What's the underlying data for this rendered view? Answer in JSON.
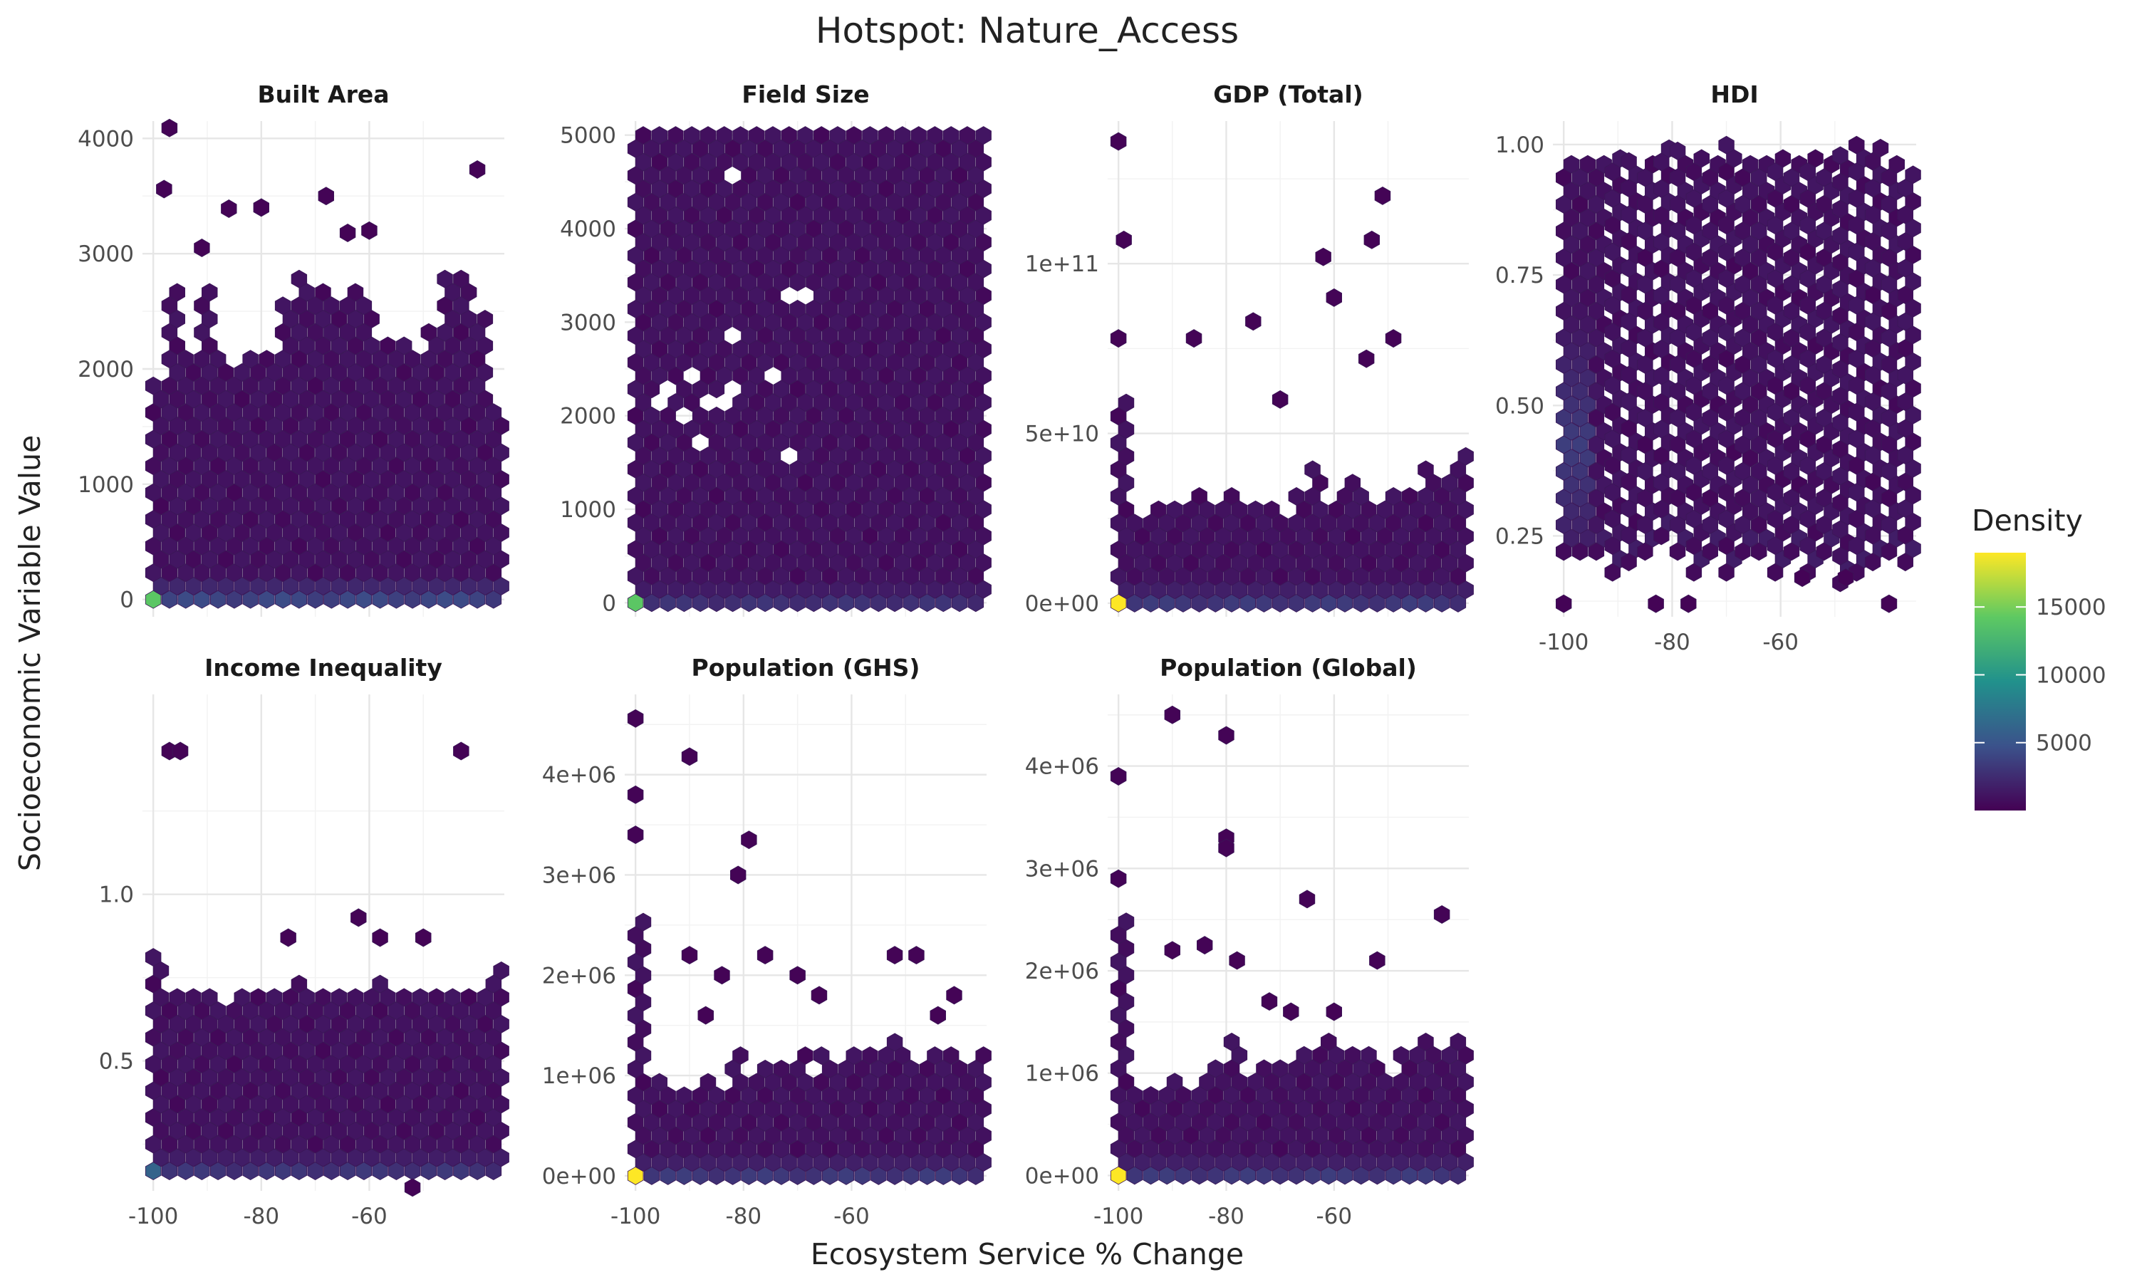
{
  "chart_data": {
    "type": "heatmap",
    "subtype": "hexbin-facets",
    "title": "Hotspot: Nature_Access",
    "xlabel": "Ecosystem Service % Change",
    "ylabel": "Socioeconomic Variable Value",
    "xlim": [
      -102,
      -35
    ],
    "x_ticks": [
      -100,
      -80,
      -60
    ],
    "x_tick_labels": [
      "-100",
      "-80",
      "-60"
    ],
    "grid": true,
    "colormap": "viridis",
    "colors": [
      "#440154",
      "#3b528b",
      "#21918c",
      "#5ec962",
      "#fde725"
    ],
    "legend": {
      "title": "Density",
      "placement": "right",
      "range": [
        0,
        19000
      ],
      "ticks": [
        5000,
        10000,
        15000
      ],
      "tick_labels": [
        "5000",
        "10000",
        "15000"
      ]
    },
    "panels": [
      {
        "title": "Built Area",
        "ylim": [
          -150,
          4150
        ],
        "y_ticks": [
          0,
          1000,
          2000,
          3000,
          4000
        ],
        "y_tick_labels": [
          "0",
          "1000",
          "2000",
          "3000",
          "4000"
        ],
        "hot_density": 14000,
        "mid_density": 4000,
        "profile": [
          1950,
          2700,
          2100,
          2700,
          2200,
          2000,
          2200,
          2200,
          2600,
          2800,
          2700,
          2600,
          2700,
          2600,
          2300,
          2300,
          2200,
          2400,
          2800,
          2800,
          2500,
          1700
        ],
        "outliers": [
          [
            -97,
            4090
          ],
          [
            -60,
            3200
          ],
          [
            -40,
            3730
          ],
          [
            -86,
            3390
          ],
          [
            -80,
            3400
          ],
          [
            -68,
            3500
          ],
          [
            -64,
            3180
          ],
          [
            -91,
            3050
          ],
          [
            -98,
            3560
          ]
        ],
        "holes": []
      },
      {
        "title": "Field Size",
        "ylim": [
          -150,
          5150
        ],
        "y_ticks": [
          0,
          1000,
          2000,
          3000,
          4000,
          5000
        ],
        "y_tick_labels": [
          "0",
          "1000",
          "2000",
          "3000",
          "4000",
          "5000"
        ],
        "hot_density": 14000,
        "mid_density": 2800,
        "profile": [
          5000,
          5000,
          5000,
          5000,
          5000,
          5000,
          5000,
          5000,
          5000,
          5000,
          5000,
          5000,
          5000,
          5000,
          5000,
          5000,
          5000,
          5000,
          5000,
          5000,
          5000,
          5000
        ],
        "outliers": [],
        "holes": [
          [
            -81,
            4550
          ],
          [
            -70,
            3250
          ],
          [
            -83,
            2830
          ],
          [
            -90,
            2400
          ],
          [
            -95,
            2200
          ],
          [
            -92,
            2000
          ],
          [
            -86,
            2100
          ],
          [
            -83,
            2200
          ],
          [
            -88,
            1750
          ],
          [
            -74,
            2400
          ],
          [
            -72,
            1550
          ]
        ]
      },
      {
        "title": "GDP (Total)",
        "ylim": [
          -4000000000.0,
          142000000000.0
        ],
        "y_ticks": [
          0,
          50000000000,
          100000000000
        ],
        "y_tick_labels": [
          "0e+00",
          "5e+10",
          "1e+11"
        ],
        "hot_density": 19000,
        "mid_density": 3200,
        "profile": [
          60000000000,
          25000000000,
          30000000000,
          28000000000,
          30000000000,
          32000000000,
          30000000000,
          34000000000,
          30000000000,
          28000000000,
          25000000000,
          32000000000,
          42000000000,
          30000000000,
          36000000000,
          32000000000,
          28000000000,
          32000000000,
          34000000000,
          40000000000,
          36000000000,
          44000000000
        ],
        "outliers": [
          [
            -100,
            136000000000
          ],
          [
            -99,
            107000000000
          ],
          [
            -86,
            78000000000
          ],
          [
            -75,
            83000000000
          ],
          [
            -70,
            60000000000
          ],
          [
            -62,
            102000000000
          ],
          [
            -60,
            90000000000
          ],
          [
            -53,
            107000000000
          ],
          [
            -51,
            120000000000
          ],
          [
            -54,
            72000000000
          ],
          [
            -49,
            78000000000
          ],
          [
            -100,
            78000000000
          ]
        ],
        "holes": []
      },
      {
        "title": "HDI",
        "ylim": [
          0.095,
          1.045
        ],
        "y_ticks": [
          0.25,
          0.5,
          0.75,
          1.0
        ],
        "y_tick_labels": [
          "0.25",
          "0.50",
          "0.75",
          "1.00"
        ],
        "hot_density": 6500,
        "mid_density": 3000,
        "profile": [
          0.98,
          0.98,
          0.98,
          0.98,
          0.98,
          0.98,
          1.0,
          1.0,
          0.98,
          0.98,
          1.0,
          0.98,
          0.98,
          0.98,
          0.98,
          0.98,
          0.98,
          0.98,
          1.0,
          1.0,
          0.98,
          0.95
        ],
        "low_profile": [
          0.22,
          0.22,
          0.22,
          0.18,
          0.2,
          0.22,
          0.25,
          0.22,
          0.18,
          0.22,
          0.18,
          0.22,
          0.22,
          0.18,
          0.22,
          0.18,
          0.22,
          0.16,
          0.18,
          0.2,
          0.22,
          0.2
        ],
        "outliers": [
          [
            -100,
            0.12
          ],
          [
            -83,
            0.12
          ],
          [
            -77,
            0.12
          ],
          [
            -56,
            0.17
          ],
          [
            -48,
            0.17
          ],
          [
            -40,
            0.12
          ]
        ],
        "holes": []
      },
      {
        "title": "Income Inequality",
        "ylim": [
          0.11,
          1.6
        ],
        "y_ticks": [
          0.5,
          1.0
        ],
        "y_tick_labels": [
          "0.5",
          "1.0"
        ],
        "hot_density": 6000,
        "mid_density": 3000,
        "profile": [
          0.82,
          0.72,
          0.72,
          0.7,
          0.68,
          0.7,
          0.72,
          0.72,
          0.72,
          0.76,
          0.72,
          0.72,
          0.72,
          0.72,
          0.76,
          0.72,
          0.72,
          0.72,
          0.72,
          0.72,
          0.72,
          0.8
        ],
        "outliers": [
          [
            -97,
            1.43
          ],
          [
            -95,
            1.43
          ],
          [
            -43,
            1.43
          ],
          [
            -75,
            0.87
          ],
          [
            -62,
            0.93
          ],
          [
            -58,
            0.87
          ],
          [
            -50,
            0.87
          ],
          [
            -52,
            0.12
          ]
        ],
        "holes": []
      },
      {
        "title": "Population (GHS)",
        "ylim": [
          -150000,
          4800000
        ],
        "y_ticks": [
          0,
          1000000,
          2000000,
          3000000,
          4000000
        ],
        "y_tick_labels": [
          "0e+00",
          "1e+06",
          "2e+06",
          "3e+06",
          "4e+06"
        ],
        "hot_density": 19000,
        "mid_density": 3200,
        "profile": [
          2600000,
          1000000,
          900000,
          900000,
          1000000,
          900000,
          1200000,
          1000000,
          1100000,
          1100000,
          1300000,
          1200000,
          1100000,
          1200000,
          1300000,
          1200000,
          1400000,
          1100000,
          1300000,
          1200000,
          1100000,
          1200000
        ],
        "outliers": [
          [
            -100,
            4560000
          ],
          [
            -100,
            3800000
          ],
          [
            -90,
            4180000
          ],
          [
            -100,
            3400000
          ],
          [
            -81,
            3000000
          ],
          [
            -79,
            3350000
          ],
          [
            -76,
            2200000
          ],
          [
            -70,
            2000000
          ],
          [
            -66,
            1800000
          ],
          [
            -52,
            2200000
          ],
          [
            -48,
            2200000
          ],
          [
            -41,
            1800000
          ],
          [
            -44,
            1600000
          ],
          [
            -90,
            2200000
          ],
          [
            -84,
            2000000
          ],
          [
            -87,
            1600000
          ]
        ],
        "holes": [
          [
            -79,
            1100000
          ],
          [
            -67,
            1100000
          ],
          [
            -55,
            1350000
          ],
          [
            -80,
            1600000
          ]
        ]
      },
      {
        "title": "Population (Global)",
        "ylim": [
          -150000,
          4700000
        ],
        "y_ticks": [
          0,
          1000000,
          2000000,
          3000000,
          4000000
        ],
        "y_tick_labels": [
          "0e+00",
          "1e+06",
          "2e+06",
          "3e+06",
          "4e+06"
        ],
        "hot_density": 19000,
        "mid_density": 3200,
        "profile": [
          2500000,
          900000,
          900000,
          1000000,
          900000,
          1200000,
          1100000,
          1400000,
          1000000,
          1100000,
          1300000,
          1200000,
          1200000,
          1400000,
          1200000,
          1200000,
          1100000,
          1200000,
          1300000,
          1400000,
          1200000,
          1400000
        ],
        "outliers": [
          [
            -90,
            4500000
          ],
          [
            -100,
            3900000
          ],
          [
            -80,
            4300000
          ],
          [
            -80,
            3300000
          ],
          [
            -80,
            3200000
          ],
          [
            -65,
            2700000
          ],
          [
            -40,
            2550000
          ],
          [
            -90,
            2200000
          ],
          [
            -84,
            2250000
          ],
          [
            -78,
            2100000
          ],
          [
            -72,
            1700000
          ],
          [
            -68,
            1600000
          ],
          [
            -52,
            2100000
          ],
          [
            -60,
            1600000
          ],
          [
            -100,
            2900000
          ]
        ],
        "holes": [
          [
            -85,
            1100000
          ],
          [
            -55,
            1300000
          ],
          [
            -50,
            1000000
          ],
          [
            -70,
            1150000
          ],
          [
            -92,
            1050000
          ]
        ]
      }
    ]
  }
}
